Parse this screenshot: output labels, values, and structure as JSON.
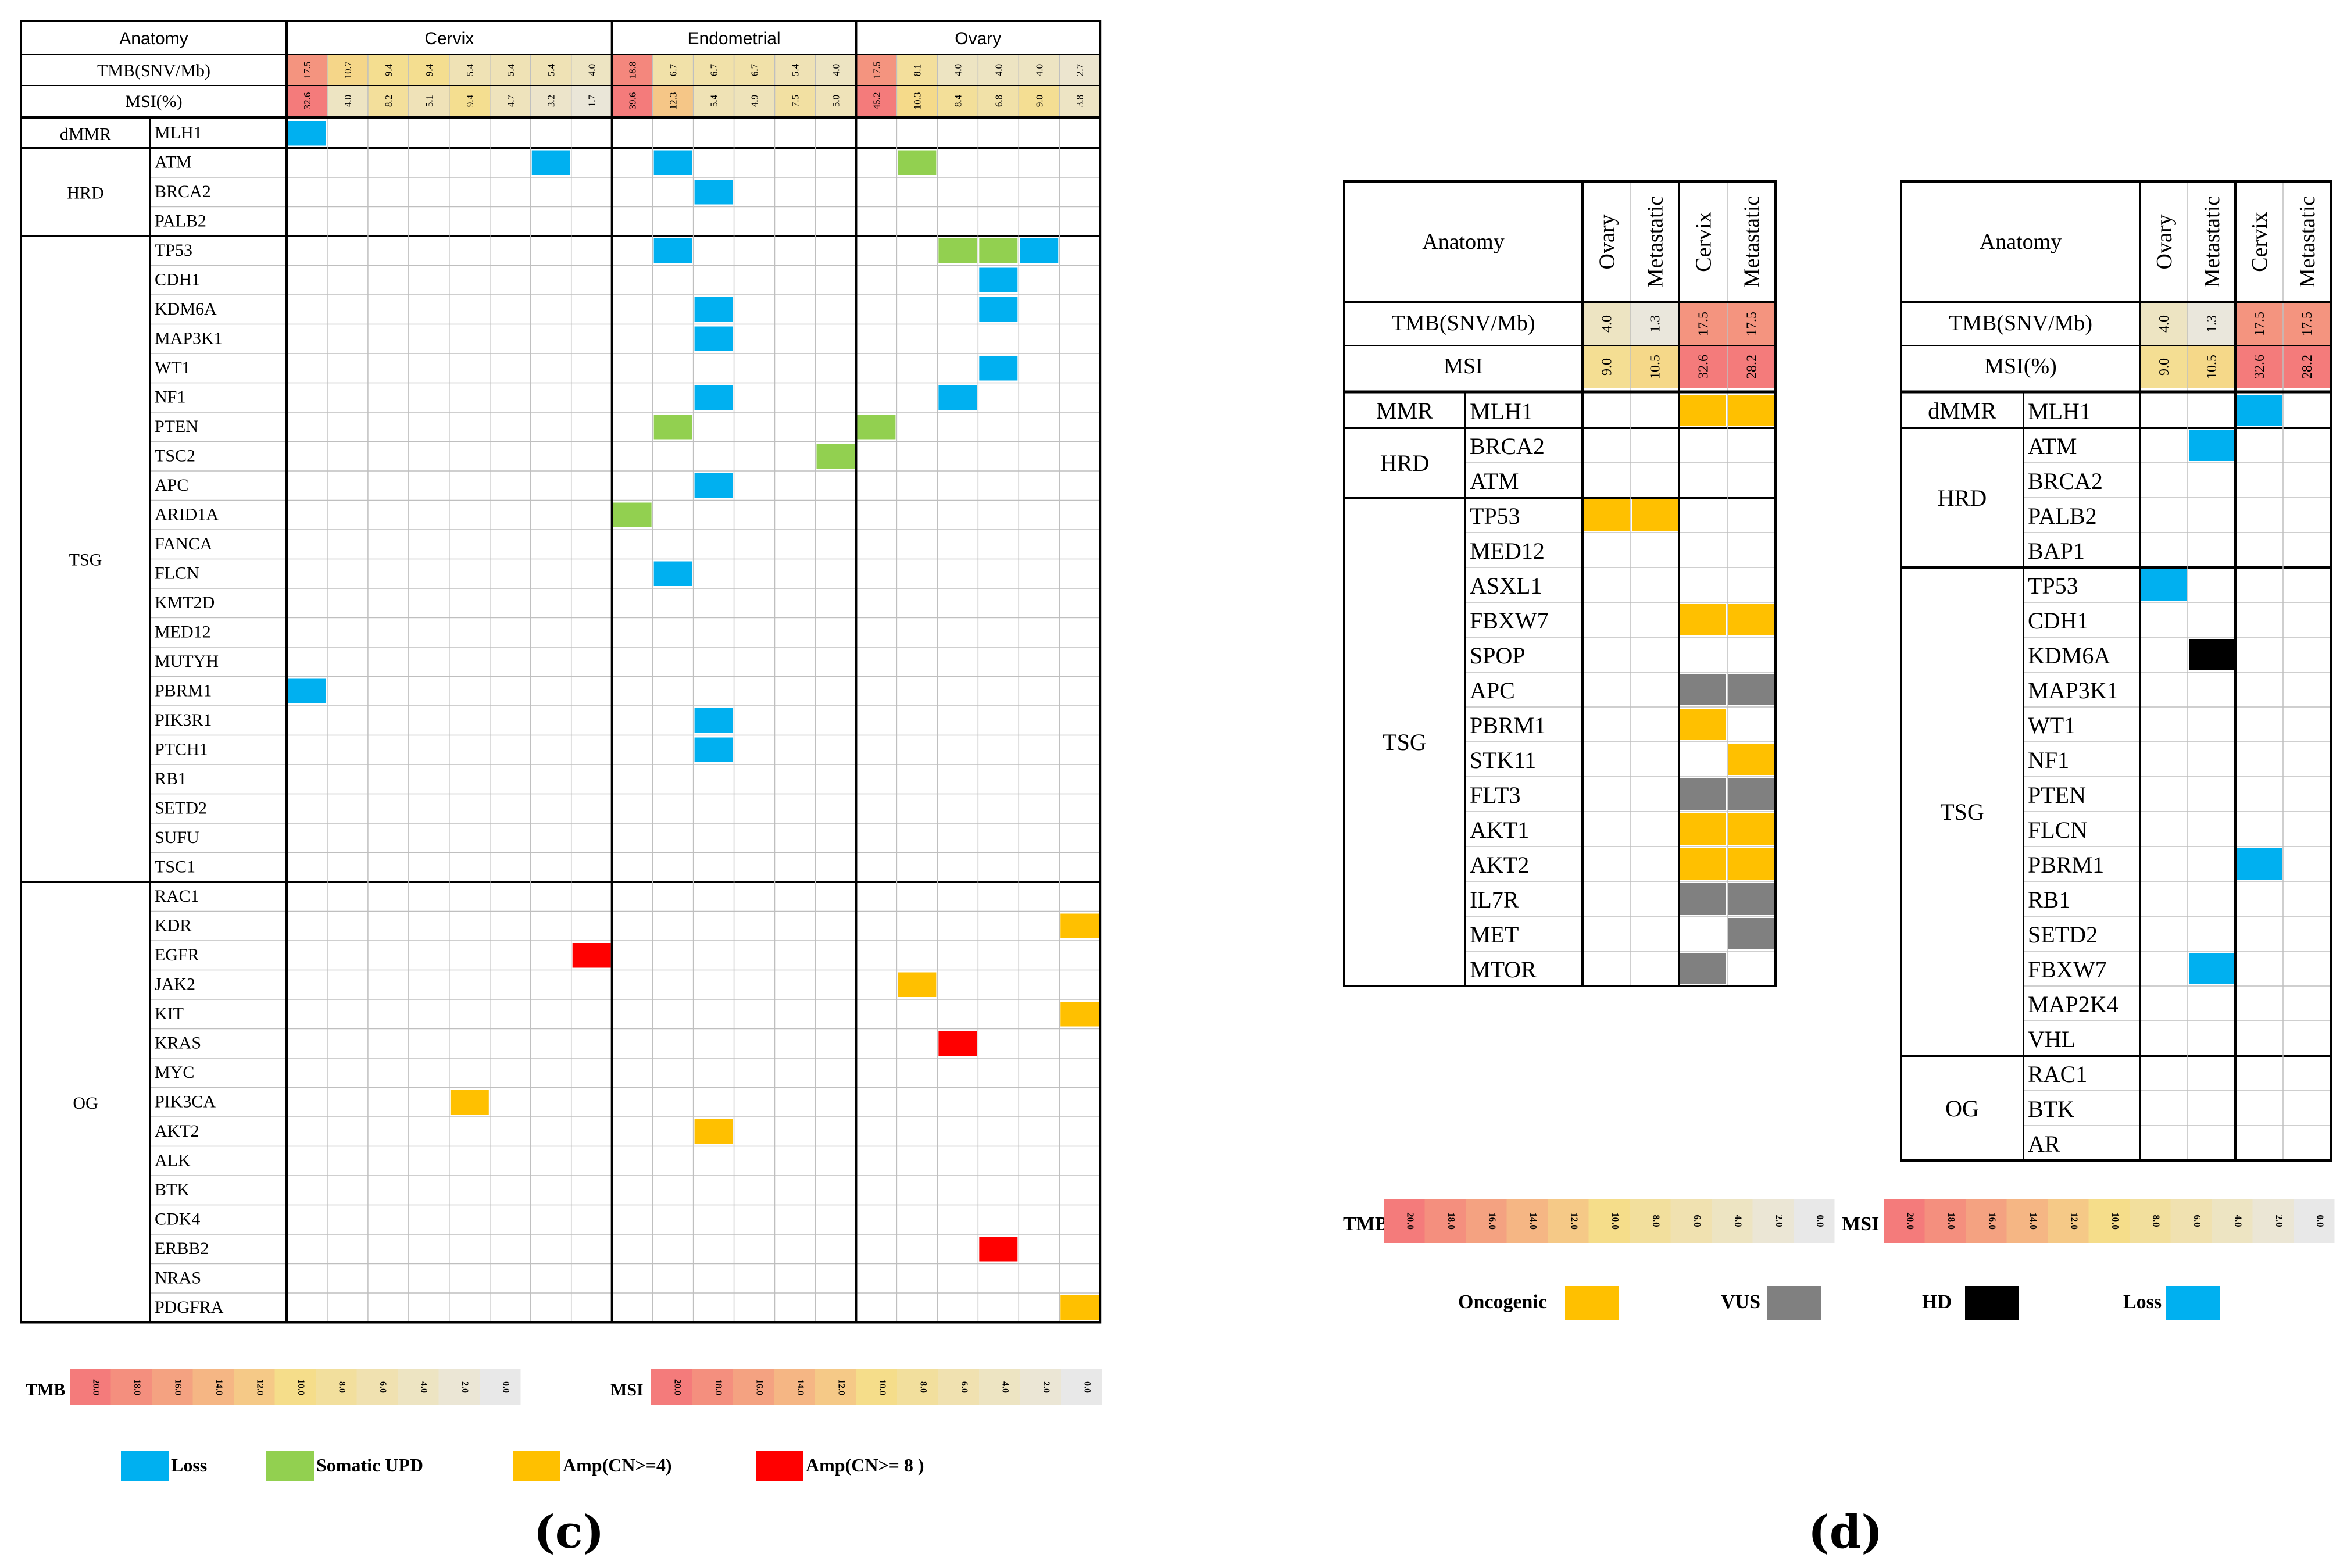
{
  "colors": {
    "loss": "#00B0F0",
    "somatic_upd": "#92D050",
    "amp4": "#FFC000",
    "amp8": "#FF0000",
    "oncogenic": "#FFC000",
    "vus": "#808080",
    "hd": "#000000",
    "grid": "#bfbfbf",
    "scale_low": "#e8e8e8",
    "scale_mid": "#f5dd8a",
    "scale_high": "#f47b7b"
  },
  "caption_c": "(c)",
  "caption_d": "(d)",
  "panel_c": {
    "anatomy_label": "Anatomy",
    "groups": [
      {
        "name": "Cervix",
        "count": 8
      },
      {
        "name": "Endometrial",
        "count": 6
      },
      {
        "name": "Ovary",
        "count": 6
      }
    ],
    "tmb_label": "TMB(SNV/Mb)",
    "msi_label": "MSI(%)",
    "tmb": [
      "17.5",
      "10.7",
      "9.4",
      "9.4",
      "5.4",
      "5.4",
      "5.4",
      "4.0",
      "18.8",
      "6.7",
      "6.7",
      "6.7",
      "5.4",
      "4.0",
      "17.5",
      "8.1",
      "4.0",
      "4.0",
      "4.0",
      "2.7"
    ],
    "msi": [
      "32.6",
      "4.0",
      "8.2",
      "5.1",
      "9.4",
      "4.7",
      "3.2",
      "1.7",
      "39.6",
      "12.3",
      "5.4",
      "4.9",
      "7.5",
      "5.0",
      "45.2",
      "10.3",
      "8.4",
      "6.8",
      "9.0",
      "3.8"
    ],
    "categories": [
      {
        "name": "dMMR",
        "genes": [
          "MLH1"
        ]
      },
      {
        "name": "HRD",
        "genes": [
          "ATM",
          "BRCA2",
          "PALB2"
        ]
      },
      {
        "name": "TSG",
        "genes": [
          "TP53",
          "CDH1",
          "KDM6A",
          "MAP3K1",
          "WT1",
          "NF1",
          "PTEN",
          "TSC2",
          "APC",
          "ARID1A",
          "FANCA",
          "FLCN",
          "KMT2D",
          "MED12",
          "MUTYH",
          "PBRM1",
          "PIK3R1",
          "PTCH1",
          "RB1",
          "SETD2",
          "SUFU",
          "TSC1"
        ]
      },
      {
        "name": "OG",
        "genes": [
          "RAC1",
          "KDR",
          "EGFR",
          "JAK2",
          "KIT",
          "KRAS",
          "MYC",
          "PIK3CA",
          "AKT2",
          "ALK",
          "BTK",
          "CDK4",
          "ERBB2",
          "NRAS",
          "PDGFRA"
        ]
      }
    ],
    "alterations": [
      {
        "gene": "MLH1",
        "col": 0,
        "type": "loss"
      },
      {
        "gene": "ATM",
        "col": 6,
        "type": "loss"
      },
      {
        "gene": "ATM",
        "col": 9,
        "type": "loss"
      },
      {
        "gene": "ATM",
        "col": 15,
        "type": "somatic_upd"
      },
      {
        "gene": "BRCA2",
        "col": 10,
        "type": "loss"
      },
      {
        "gene": "TP53",
        "col": 9,
        "type": "loss"
      },
      {
        "gene": "TP53",
        "col": 16,
        "type": "somatic_upd"
      },
      {
        "gene": "TP53",
        "col": 17,
        "type": "somatic_upd"
      },
      {
        "gene": "TP53",
        "col": 18,
        "type": "loss"
      },
      {
        "gene": "CDH1",
        "col": 17,
        "type": "loss"
      },
      {
        "gene": "KDM6A",
        "col": 10,
        "type": "loss"
      },
      {
        "gene": "KDM6A",
        "col": 17,
        "type": "loss"
      },
      {
        "gene": "MAP3K1",
        "col": 10,
        "type": "loss"
      },
      {
        "gene": "WT1",
        "col": 17,
        "type": "loss"
      },
      {
        "gene": "NF1",
        "col": 10,
        "type": "loss"
      },
      {
        "gene": "NF1",
        "col": 16,
        "type": "loss"
      },
      {
        "gene": "PTEN",
        "col": 9,
        "type": "somatic_upd"
      },
      {
        "gene": "PTEN",
        "col": 14,
        "type": "somatic_upd"
      },
      {
        "gene": "TSC2",
        "col": 13,
        "type": "somatic_upd"
      },
      {
        "gene": "APC",
        "col": 10,
        "type": "loss"
      },
      {
        "gene": "ARID1A",
        "col": 8,
        "type": "somatic_upd"
      },
      {
        "gene": "FLCN",
        "col": 9,
        "type": "loss"
      },
      {
        "gene": "PBRM1",
        "col": 0,
        "type": "loss"
      },
      {
        "gene": "PIK3R1",
        "col": 10,
        "type": "loss"
      },
      {
        "gene": "PTCH1",
        "col": 10,
        "type": "loss"
      },
      {
        "gene": "KDR",
        "col": 19,
        "type": "amp4"
      },
      {
        "gene": "EGFR",
        "col": 7,
        "type": "amp8"
      },
      {
        "gene": "JAK2",
        "col": 15,
        "type": "amp4"
      },
      {
        "gene": "KIT",
        "col": 19,
        "type": "amp4"
      },
      {
        "gene": "KRAS",
        "col": 16,
        "type": "amp8"
      },
      {
        "gene": "PIK3CA",
        "col": 4,
        "type": "amp4"
      },
      {
        "gene": "AKT2",
        "col": 10,
        "type": "amp4"
      },
      {
        "gene": "ERBB2",
        "col": 17,
        "type": "amp8"
      },
      {
        "gene": "PDGFRA",
        "col": 19,
        "type": "amp4"
      }
    ],
    "tmb_scale_label": "TMB",
    "msi_scale_label": "MSI",
    "scale_ticks": [
      "20.0",
      "18.0",
      "16.0",
      "14.0",
      "12.0",
      "10.0",
      "8.0",
      "6.0",
      "4.0",
      "2.0",
      "0.0"
    ],
    "legend": [
      {
        "key": "loss",
        "label": "Loss"
      },
      {
        "key": "somatic_upd",
        "label": "Somatic UPD"
      },
      {
        "key": "amp4",
        "label": "Amp(CN>=4)"
      },
      {
        "key": "amp8",
        "label": "Amp(CN>= 8 )"
      }
    ]
  },
  "panel_d1": {
    "anatomy_label": "Anatomy",
    "columns": [
      "Ovary",
      "Metastatic",
      "Cervix",
      "Metastatic"
    ],
    "tmb_label": "TMB(SNV/Mb)",
    "msi_label": "MSI",
    "tmb": [
      "4.0",
      "1.3",
      "17.5",
      "17.5"
    ],
    "msi": [
      "9.0",
      "10.5",
      "32.6",
      "28.2"
    ],
    "categories": [
      {
        "name": "MMR",
        "genes": [
          "MLH1"
        ]
      },
      {
        "name": "HRD",
        "genes": [
          "BRCA2",
          "ATM"
        ]
      },
      {
        "name": "TSG",
        "genes": [
          "TP53",
          "MED12",
          "ASXL1",
          "FBXW7",
          "SPOP",
          "APC",
          "PBRM1",
          "STK11",
          "FLT3",
          "AKT1",
          "AKT2",
          "IL7R",
          "MET",
          "MTOR"
        ]
      }
    ],
    "alterations": [
      {
        "gene": "MLH1",
        "col": 2,
        "type": "oncogenic"
      },
      {
        "gene": "MLH1",
        "col": 3,
        "type": "oncogenic"
      },
      {
        "gene": "TP53",
        "col": 0,
        "type": "oncogenic"
      },
      {
        "gene": "TP53",
        "col": 1,
        "type": "oncogenic"
      },
      {
        "gene": "FBXW7",
        "col": 2,
        "type": "oncogenic"
      },
      {
        "gene": "FBXW7",
        "col": 3,
        "type": "oncogenic"
      },
      {
        "gene": "APC",
        "col": 2,
        "type": "vus"
      },
      {
        "gene": "APC",
        "col": 3,
        "type": "vus"
      },
      {
        "gene": "PBRM1",
        "col": 2,
        "type": "oncogenic"
      },
      {
        "gene": "STK11",
        "col": 3,
        "type": "oncogenic"
      },
      {
        "gene": "FLT3",
        "col": 2,
        "type": "vus"
      },
      {
        "gene": "FLT3",
        "col": 3,
        "type": "vus"
      },
      {
        "gene": "AKT1",
        "col": 2,
        "type": "oncogenic"
      },
      {
        "gene": "AKT1",
        "col": 3,
        "type": "oncogenic"
      },
      {
        "gene": "AKT2",
        "col": 2,
        "type": "oncogenic"
      },
      {
        "gene": "AKT2",
        "col": 3,
        "type": "oncogenic"
      },
      {
        "gene": "IL7R",
        "col": 2,
        "type": "vus"
      },
      {
        "gene": "IL7R",
        "col": 3,
        "type": "vus"
      },
      {
        "gene": "MET",
        "col": 3,
        "type": "vus"
      },
      {
        "gene": "MTOR",
        "col": 2,
        "type": "vus"
      }
    ]
  },
  "panel_d2": {
    "anatomy_label": "Anatomy",
    "columns": [
      "Ovary",
      "Metastatic",
      "Cervix",
      "Metastatic"
    ],
    "tmb_label": "TMB(SNV/Mb)",
    "msi_label": "MSI(%)",
    "tmb": [
      "4.0",
      "1.3",
      "17.5",
      "17.5"
    ],
    "msi": [
      "9.0",
      "10.5",
      "32.6",
      "28.2"
    ],
    "categories": [
      {
        "name": "dMMR",
        "genes": [
          "MLH1"
        ]
      },
      {
        "name": "HRD",
        "genes": [
          "ATM",
          "BRCA2",
          "PALB2",
          "BAP1"
        ]
      },
      {
        "name": "TSG",
        "genes": [
          "TP53",
          "CDH1",
          "KDM6A",
          "MAP3K1",
          "WT1",
          "NF1",
          "PTEN",
          "FLCN",
          "PBRM1",
          "RB1",
          "SETD2",
          "FBXW7",
          "MAP2K4",
          "VHL"
        ]
      },
      {
        "name": "OG",
        "genes": [
          "RAC1",
          "BTK",
          "AR"
        ]
      }
    ],
    "alterations": [
      {
        "gene": "MLH1",
        "col": 2,
        "type": "loss"
      },
      {
        "gene": "ATM",
        "col": 1,
        "type": "loss"
      },
      {
        "gene": "TP53",
        "col": 0,
        "type": "loss"
      },
      {
        "gene": "KDM6A",
        "col": 1,
        "type": "hd"
      },
      {
        "gene": "PBRM1",
        "col": 2,
        "type": "loss"
      },
      {
        "gene": "FBXW7",
        "col": 1,
        "type": "loss"
      }
    ]
  },
  "panel_d_scales": {
    "tmb_label": "TMB",
    "msi_label": "MSI",
    "ticks": [
      "20.0",
      "18.0",
      "16.0",
      "14.0",
      "12.0",
      "10.0",
      "8.0",
      "6.0",
      "4.0",
      "2.0",
      "0.0"
    ]
  },
  "panel_d_legend": [
    {
      "key": "oncogenic",
      "label": "Oncogenic"
    },
    {
      "key": "vus",
      "label": "VUS"
    },
    {
      "key": "hd",
      "label": "HD"
    },
    {
      "key": "loss",
      "label": "Loss"
    }
  ]
}
